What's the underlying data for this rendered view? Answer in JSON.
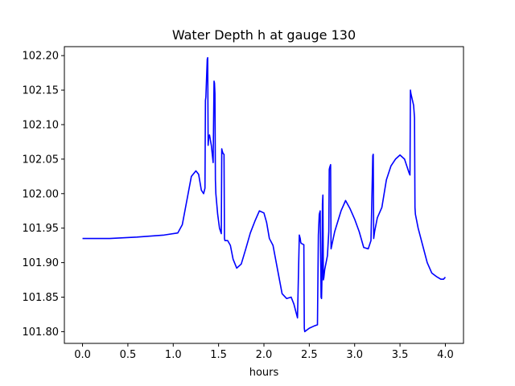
{
  "chart_data": {
    "type": "line",
    "title": "Water Depth h at gauge 130",
    "xlabel": "hours",
    "ylabel": "",
    "xlim": [
      -0.2,
      4.2
    ],
    "ylim": [
      101.783,
      102.213
    ],
    "x_ticks": [
      0.0,
      0.5,
      1.0,
      1.5,
      2.0,
      2.5,
      3.0,
      3.5,
      4.0
    ],
    "x_tick_labels": [
      "0.0",
      "0.5",
      "1.0",
      "1.5",
      "2.0",
      "2.5",
      "3.0",
      "3.5",
      "4.0"
    ],
    "y_ticks": [
      101.8,
      101.85,
      101.9,
      101.95,
      102.0,
      102.05,
      102.1,
      102.15,
      102.2
    ],
    "y_tick_labels": [
      "101.80",
      "101.85",
      "101.90",
      "101.95",
      "102.00",
      "102.05",
      "102.10",
      "102.15",
      "102.20"
    ],
    "grid": false,
    "colors": {
      "line": "#0000ff",
      "axes": "#000000"
    },
    "series": [
      {
        "x": [
          0.0,
          0.3,
          0.6,
          0.9,
          1.05,
          1.1,
          1.15,
          1.2,
          1.25,
          1.28,
          1.31,
          1.335,
          1.35,
          1.355,
          1.36,
          1.375,
          1.38,
          1.385,
          1.39,
          1.4,
          1.42,
          1.44,
          1.45,
          1.455,
          1.46,
          1.465,
          1.47,
          1.49,
          1.51,
          1.53,
          1.535,
          1.54,
          1.55,
          1.56,
          1.565,
          1.57,
          1.6,
          1.63,
          1.66,
          1.7,
          1.75,
          1.8,
          1.85,
          1.9,
          1.95,
          2.0,
          2.03,
          2.06,
          2.1,
          2.15,
          2.2,
          2.25,
          2.3,
          2.33,
          2.35,
          2.37,
          2.39,
          2.4,
          2.405,
          2.41,
          2.44,
          2.445,
          2.45,
          2.5,
          2.55,
          2.59,
          2.6,
          2.605,
          2.61,
          2.62,
          2.63,
          2.635,
          2.64,
          2.645,
          2.65,
          2.655,
          2.66,
          2.67,
          2.7,
          2.715,
          2.72,
          2.725,
          2.73,
          2.735,
          2.74,
          2.78,
          2.85,
          2.9,
          2.95,
          3.0,
          3.05,
          3.1,
          3.15,
          3.18,
          3.2,
          3.205,
          3.21,
          3.22,
          3.25,
          3.3,
          3.35,
          3.4,
          3.45,
          3.5,
          3.55,
          3.6,
          3.61,
          3.615,
          3.62,
          3.65,
          3.66,
          3.665,
          3.67,
          3.7,
          3.75,
          3.8,
          3.85,
          3.9,
          3.95,
          3.98,
          4.0
        ],
        "y": [
          101.935,
          101.935,
          101.937,
          101.94,
          101.943,
          101.955,
          101.99,
          102.025,
          102.033,
          102.028,
          102.005,
          102.0,
          102.008,
          102.135,
          102.14,
          102.195,
          102.197,
          102.07,
          102.08,
          102.085,
          102.07,
          102.045,
          102.163,
          102.16,
          102.145,
          102.02,
          102.0,
          101.97,
          101.95,
          101.942,
          102.065,
          102.062,
          102.058,
          102.057,
          101.935,
          101.932,
          101.932,
          101.925,
          101.905,
          101.892,
          101.898,
          101.92,
          101.943,
          101.96,
          101.975,
          101.972,
          101.958,
          101.935,
          101.925,
          101.89,
          101.855,
          101.848,
          101.85,
          101.84,
          101.83,
          101.82,
          101.94,
          101.935,
          101.93,
          101.928,
          101.926,
          101.805,
          101.8,
          101.805,
          101.808,
          101.81,
          101.94,
          101.955,
          101.97,
          101.975,
          101.85,
          101.848,
          101.88,
          101.985,
          101.998,
          101.875,
          101.878,
          101.89,
          101.91,
          101.945,
          102.035,
          102.038,
          102.04,
          102.042,
          101.92,
          101.945,
          101.975,
          101.99,
          101.978,
          101.963,
          101.945,
          101.922,
          101.92,
          101.932,
          102.055,
          102.057,
          101.935,
          101.945,
          101.965,
          101.98,
          102.02,
          102.04,
          102.05,
          102.056,
          102.05,
          102.03,
          102.027,
          102.15,
          102.145,
          102.128,
          102.11,
          101.98,
          101.97,
          101.95,
          101.925,
          101.9,
          101.885,
          101.88,
          101.876,
          101.876,
          101.879
        ]
      }
    ]
  }
}
